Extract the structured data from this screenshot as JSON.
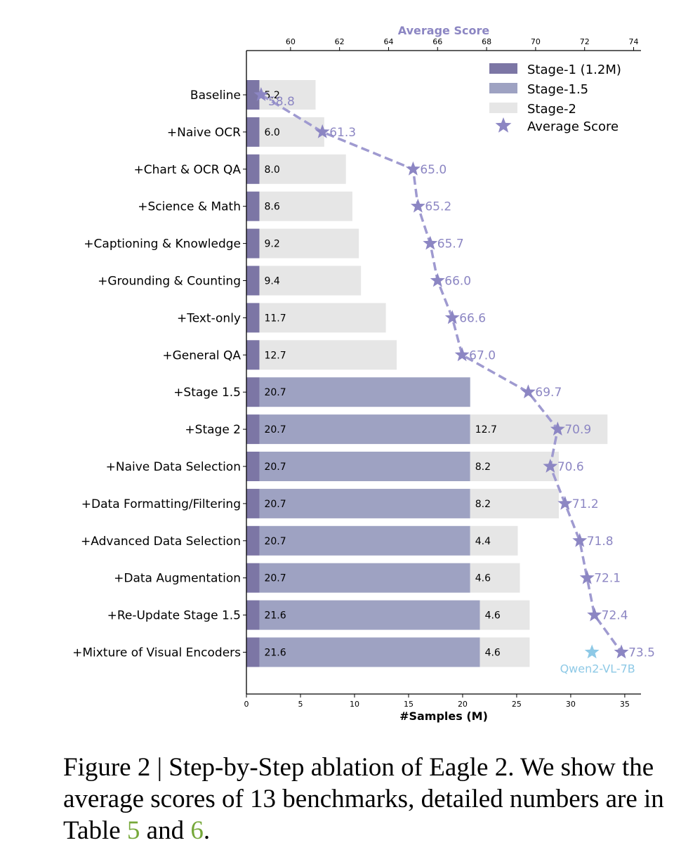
{
  "chart_data": {
    "type": "bar",
    "orientation": "horizontal-stacked",
    "categories": [
      "Baseline",
      "+Naive OCR",
      "+Chart & OCR QA",
      "+Science & Math",
      "+Captioning & Knowledge",
      "+Grounding & Counting",
      "+Text-only",
      "+General QA",
      "+Stage 1.5",
      "+Stage 2",
      "+Naive Data Selection",
      "+Data Formatting/Filtering",
      "+Advanced Data Selection",
      "+Data Augmentation",
      "+Re-Update Stage 1.5",
      "+Mixture of Visual Encoders"
    ],
    "series": [
      {
        "name": "Stage-1 (1.2M)",
        "color": "#7c76a5",
        "values": [
          1.2,
          1.2,
          1.2,
          1.2,
          1.2,
          1.2,
          1.2,
          1.2,
          1.2,
          1.2,
          1.2,
          1.2,
          1.2,
          1.2,
          1.2,
          1.2
        ]
      },
      {
        "name": "Stage-1.5",
        "color": "#9ea2c2",
        "values": [
          0,
          0,
          0,
          0,
          0,
          0,
          0,
          0,
          19.5,
          19.5,
          19.5,
          19.5,
          19.5,
          19.5,
          20.4,
          20.4
        ]
      },
      {
        "name": "Stage-2",
        "color": "#e6e6e6",
        "values": [
          5.2,
          6.0,
          8.0,
          8.6,
          9.2,
          9.4,
          11.7,
          12.7,
          0,
          12.7,
          8.2,
          8.2,
          4.4,
          4.6,
          4.6,
          4.6
        ]
      }
    ],
    "bar_labels": {
      "stage1_5": [
        "",
        "",
        "",
        "",
        "",
        "",
        "",
        "",
        "20.7",
        "20.7",
        "20.7",
        "20.7",
        "20.7",
        "20.7",
        "21.6",
        "21.6"
      ],
      "stage2": [
        "5.2",
        "6.0",
        "8.0",
        "8.6",
        "9.2",
        "9.4",
        "11.7",
        "12.7",
        "",
        "12.7",
        "8.2",
        "8.2",
        "4.4",
        "4.6",
        "4.6",
        "4.6"
      ]
    },
    "average_score": {
      "name": "Average Score",
      "color": "#8c86c3",
      "values": [
        58.8,
        61.3,
        65.0,
        65.2,
        65.7,
        66.0,
        66.6,
        67.0,
        69.7,
        70.9,
        70.6,
        71.2,
        71.8,
        72.1,
        72.4,
        73.5
      ],
      "labels": [
        "58.8",
        "61.3",
        "65.0",
        "65.2",
        "65.7",
        "66.0",
        "66.6",
        "67.0",
        "69.7",
        "70.9",
        "70.6",
        "71.2",
        "71.8",
        "72.1",
        "72.4",
        "73.5"
      ]
    },
    "reference_point": {
      "label": "Qwen2-VL-7B",
      "value": 72.3,
      "color": "#8ec9e6"
    },
    "xlabel": "#Samples (M)",
    "xlim": [
      0,
      36.5
    ],
    "xticks": [
      "0",
      "5",
      "10",
      "15",
      "20",
      "25",
      "30",
      "35"
    ],
    "top_axis_label": "Average Score",
    "top_xlim": [
      58.2,
      74.3
    ],
    "top_xticks": [
      "60",
      "62",
      "64",
      "66",
      "68",
      "70",
      "72",
      "74"
    ],
    "legend_position": "top-right",
    "legend": [
      {
        "label": "Stage-1 (1.2M)",
        "color": "#7c76a5",
        "shape": "rect"
      },
      {
        "label": "Stage-1.5",
        "color": "#9ea2c2",
        "shape": "rect"
      },
      {
        "label": "Stage-2",
        "color": "#e6e6e6",
        "shape": "rect"
      },
      {
        "label": "Average Score",
        "color": "#8c86c3",
        "shape": "star"
      }
    ]
  },
  "caption": {
    "prefix": "Figure 2 | Step-by-Step ablation of Eagle 2. We show the average scores of 13 benchmarks, detailed numbers are in Table ",
    "ref1": "5",
    "mid": " and ",
    "ref2": "6",
    "suffix": "."
  }
}
